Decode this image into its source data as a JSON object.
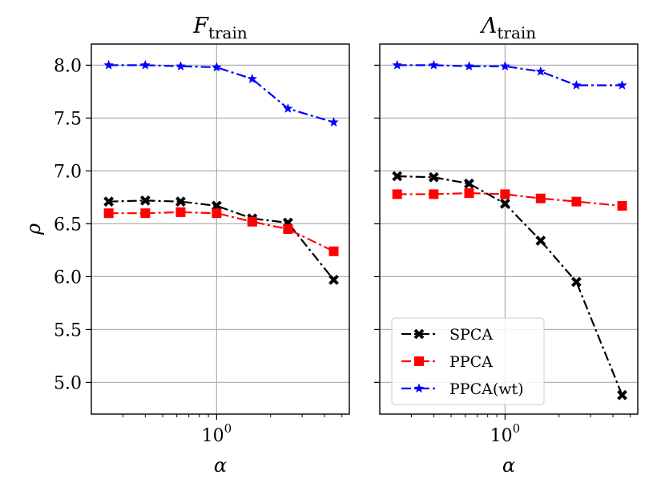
{
  "chart_data": [
    {
      "type": "line",
      "title_main": "F",
      "title_sub": "train",
      "xlabel": "α",
      "ylabel": "ρ",
      "xscale": "log",
      "xlim": [
        0.2,
        5.5
      ],
      "ylim": [
        4.7,
        8.2
      ],
      "yticks": [
        "8.0",
        "7.5",
        "7.0",
        "6.5",
        "6.0",
        "5.5",
        "5.0"
      ],
      "ytick_values": [
        8.0,
        7.5,
        7.0,
        6.5,
        6.0,
        5.5,
        5.0
      ],
      "xtick_value": 1,
      "xtick_base": "10",
      "xtick_exp": "0",
      "grid": true,
      "x": [
        0.25,
        0.4,
        0.63,
        1.0,
        1.58,
        2.5,
        4.5
      ],
      "series": [
        {
          "name": "SPCA",
          "color": "#000000",
          "marker": "x",
          "values": [
            6.71,
            6.72,
            6.71,
            6.67,
            6.55,
            6.51,
            5.97
          ]
        },
        {
          "name": "PPCA",
          "color": "#ff0000",
          "marker": "s",
          "values": [
            6.6,
            6.6,
            6.61,
            6.6,
            6.52,
            6.45,
            6.24
          ]
        },
        {
          "name": "PPCA(wt)",
          "color": "#0000ff",
          "marker": "*",
          "values": [
            8.0,
            8.0,
            7.99,
            7.98,
            7.87,
            7.59,
            7.46
          ]
        }
      ]
    },
    {
      "type": "line",
      "title_main": "Λ",
      "title_sub": "train",
      "xlabel": "α",
      "ylabel": "",
      "xscale": "log",
      "xlim": [
        0.2,
        5.5
      ],
      "ylim": [
        4.7,
        8.2
      ],
      "yticks": [],
      "ytick_values": [
        8.0,
        7.5,
        7.0,
        6.5,
        6.0,
        5.5,
        5.0
      ],
      "xtick_value": 1,
      "xtick_base": "10",
      "xtick_exp": "0",
      "grid": true,
      "legend": "lower-left",
      "x": [
        0.25,
        0.4,
        0.63,
        1.0,
        1.58,
        2.5,
        4.5
      ],
      "series": [
        {
          "name": "SPCA",
          "color": "#000000",
          "marker": "x",
          "values": [
            6.95,
            6.94,
            6.88,
            6.69,
            6.34,
            5.95,
            4.88
          ]
        },
        {
          "name": "PPCA",
          "color": "#ff0000",
          "marker": "s",
          "values": [
            6.78,
            6.78,
            6.79,
            6.78,
            6.74,
            6.71,
            6.67
          ]
        },
        {
          "name": "PPCA(wt)",
          "color": "#0000ff",
          "marker": "*",
          "values": [
            8.0,
            8.0,
            7.99,
            7.99,
            7.94,
            7.81,
            7.81
          ]
        }
      ]
    }
  ]
}
